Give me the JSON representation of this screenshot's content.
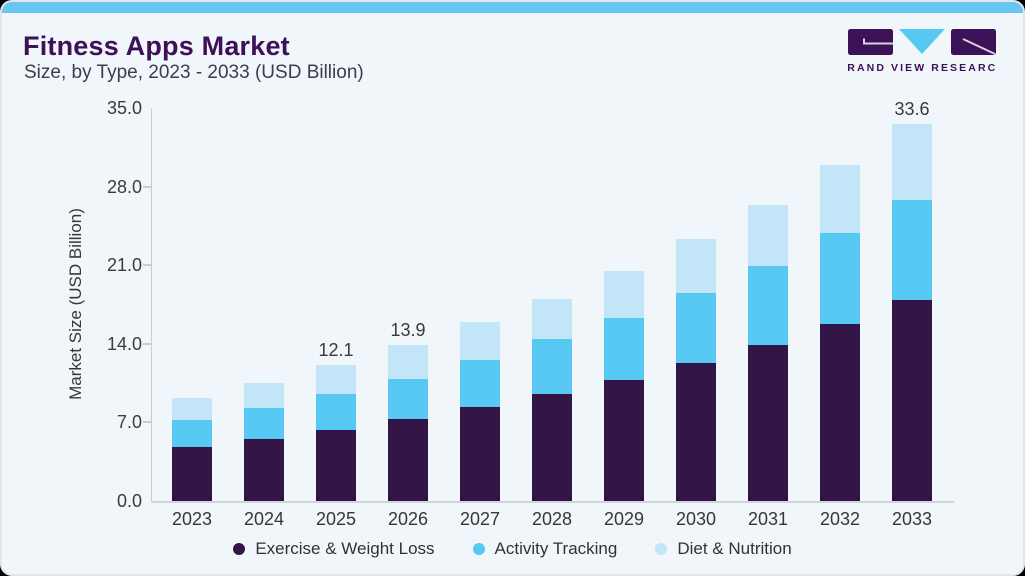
{
  "header": {
    "title": "Fitness Apps Market",
    "subtitle": "Size, by Type, 2023 - 2033 (USD Billion)",
    "logo_text": "GRAND VIEW RESEARCH"
  },
  "colors": {
    "background": "#f1f6fa",
    "accent_strip": "#66c8f0",
    "title_purple": "#3d1157",
    "axis_line": "#c9ccd0",
    "series_purple": "#321447",
    "series_blue": "#57c8f2",
    "series_light_blue": "#c2e6f8"
  },
  "chart_data": {
    "type": "bar",
    "stacked": true,
    "title": "Fitness Apps Market Size, by Type, 2023 - 2033 (USD Billion)",
    "xlabel": "",
    "ylabel": "Market Size (USD Billion)",
    "categories": [
      "2023",
      "2024",
      "2025",
      "2026",
      "2027",
      "2028",
      "2029",
      "2030",
      "2031",
      "2032",
      "2033"
    ],
    "series": [
      {
        "name": "Exercise & Weight Loss",
        "color": "#321447",
        "values": [
          4.8,
          5.5,
          6.3,
          7.3,
          8.4,
          9.5,
          10.8,
          12.3,
          13.9,
          15.8,
          17.9
        ]
      },
      {
        "name": "Activity Tracking",
        "color": "#57c8f2",
        "values": [
          2.4,
          2.8,
          3.2,
          3.6,
          4.2,
          4.9,
          5.5,
          6.2,
          7.0,
          8.1,
          8.9
        ]
      },
      {
        "name": "Diet & Nutrition",
        "color": "#c2e6f8",
        "values": [
          2.0,
          2.2,
          2.6,
          3.0,
          3.3,
          3.6,
          4.2,
          4.8,
          5.5,
          6.0,
          6.8
        ]
      }
    ],
    "totals": [
      9.2,
      10.5,
      12.1,
      13.9,
      15.9,
      18.0,
      20.5,
      23.3,
      26.4,
      29.9,
      33.6
    ],
    "annotations": {
      "2025": "12.1",
      "2026": "13.9",
      "2033": "33.6"
    },
    "yticks": [
      "0.0",
      "7.0",
      "14.0",
      "21.0",
      "28.0",
      "35.0"
    ],
    "ylim": [
      0,
      35
    ],
    "grid": false,
    "legend_position": "bottom"
  }
}
